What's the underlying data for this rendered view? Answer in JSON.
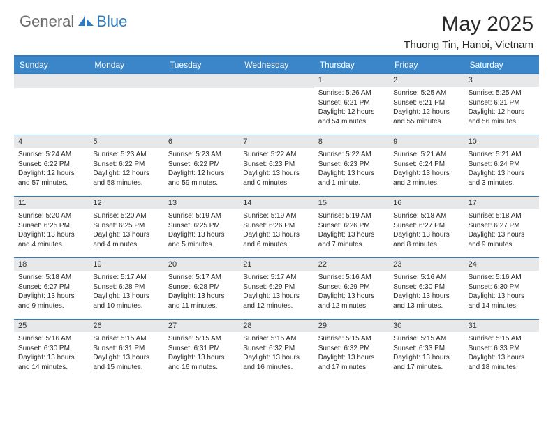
{
  "logo": {
    "general": "General",
    "blue": "Blue"
  },
  "title": "May 2025",
  "location": "Thuong Tin, Hanoi, Vietnam",
  "colors": {
    "header_bar": "#3a86c8",
    "border": "#2f7bbf",
    "daynum_bg": "#e7e8ea",
    "text": "#2a2a2a",
    "logo_gray": "#6b6b6b",
    "logo_blue": "#2f7bbf"
  },
  "day_headers": [
    "Sunday",
    "Monday",
    "Tuesday",
    "Wednesday",
    "Thursday",
    "Friday",
    "Saturday"
  ],
  "leading_blanks": 4,
  "days": [
    {
      "n": 1,
      "sr": "5:26 AM",
      "ss": "6:21 PM",
      "dl": "12 hours and 54 minutes."
    },
    {
      "n": 2,
      "sr": "5:25 AM",
      "ss": "6:21 PM",
      "dl": "12 hours and 55 minutes."
    },
    {
      "n": 3,
      "sr": "5:25 AM",
      "ss": "6:21 PM",
      "dl": "12 hours and 56 minutes."
    },
    {
      "n": 4,
      "sr": "5:24 AM",
      "ss": "6:22 PM",
      "dl": "12 hours and 57 minutes."
    },
    {
      "n": 5,
      "sr": "5:23 AM",
      "ss": "6:22 PM",
      "dl": "12 hours and 58 minutes."
    },
    {
      "n": 6,
      "sr": "5:23 AM",
      "ss": "6:22 PM",
      "dl": "12 hours and 59 minutes."
    },
    {
      "n": 7,
      "sr": "5:22 AM",
      "ss": "6:23 PM",
      "dl": "13 hours and 0 minutes."
    },
    {
      "n": 8,
      "sr": "5:22 AM",
      "ss": "6:23 PM",
      "dl": "13 hours and 1 minute."
    },
    {
      "n": 9,
      "sr": "5:21 AM",
      "ss": "6:24 PM",
      "dl": "13 hours and 2 minutes."
    },
    {
      "n": 10,
      "sr": "5:21 AM",
      "ss": "6:24 PM",
      "dl": "13 hours and 3 minutes."
    },
    {
      "n": 11,
      "sr": "5:20 AM",
      "ss": "6:25 PM",
      "dl": "13 hours and 4 minutes."
    },
    {
      "n": 12,
      "sr": "5:20 AM",
      "ss": "6:25 PM",
      "dl": "13 hours and 4 minutes."
    },
    {
      "n": 13,
      "sr": "5:19 AM",
      "ss": "6:25 PM",
      "dl": "13 hours and 5 minutes."
    },
    {
      "n": 14,
      "sr": "5:19 AM",
      "ss": "6:26 PM",
      "dl": "13 hours and 6 minutes."
    },
    {
      "n": 15,
      "sr": "5:19 AM",
      "ss": "6:26 PM",
      "dl": "13 hours and 7 minutes."
    },
    {
      "n": 16,
      "sr": "5:18 AM",
      "ss": "6:27 PM",
      "dl": "13 hours and 8 minutes."
    },
    {
      "n": 17,
      "sr": "5:18 AM",
      "ss": "6:27 PM",
      "dl": "13 hours and 9 minutes."
    },
    {
      "n": 18,
      "sr": "5:18 AM",
      "ss": "6:27 PM",
      "dl": "13 hours and 9 minutes."
    },
    {
      "n": 19,
      "sr": "5:17 AM",
      "ss": "6:28 PM",
      "dl": "13 hours and 10 minutes."
    },
    {
      "n": 20,
      "sr": "5:17 AM",
      "ss": "6:28 PM",
      "dl": "13 hours and 11 minutes."
    },
    {
      "n": 21,
      "sr": "5:17 AM",
      "ss": "6:29 PM",
      "dl": "13 hours and 12 minutes."
    },
    {
      "n": 22,
      "sr": "5:16 AM",
      "ss": "6:29 PM",
      "dl": "13 hours and 12 minutes."
    },
    {
      "n": 23,
      "sr": "5:16 AM",
      "ss": "6:30 PM",
      "dl": "13 hours and 13 minutes."
    },
    {
      "n": 24,
      "sr": "5:16 AM",
      "ss": "6:30 PM",
      "dl": "13 hours and 14 minutes."
    },
    {
      "n": 25,
      "sr": "5:16 AM",
      "ss": "6:30 PM",
      "dl": "13 hours and 14 minutes."
    },
    {
      "n": 26,
      "sr": "5:15 AM",
      "ss": "6:31 PM",
      "dl": "13 hours and 15 minutes."
    },
    {
      "n": 27,
      "sr": "5:15 AM",
      "ss": "6:31 PM",
      "dl": "13 hours and 16 minutes."
    },
    {
      "n": 28,
      "sr": "5:15 AM",
      "ss": "6:32 PM",
      "dl": "13 hours and 16 minutes."
    },
    {
      "n": 29,
      "sr": "5:15 AM",
      "ss": "6:32 PM",
      "dl": "13 hours and 17 minutes."
    },
    {
      "n": 30,
      "sr": "5:15 AM",
      "ss": "6:33 PM",
      "dl": "13 hours and 17 minutes."
    },
    {
      "n": 31,
      "sr": "5:15 AM",
      "ss": "6:33 PM",
      "dl": "13 hours and 18 minutes."
    }
  ],
  "labels": {
    "sunrise": "Sunrise:",
    "sunset": "Sunset:",
    "daylight": "Daylight:"
  }
}
